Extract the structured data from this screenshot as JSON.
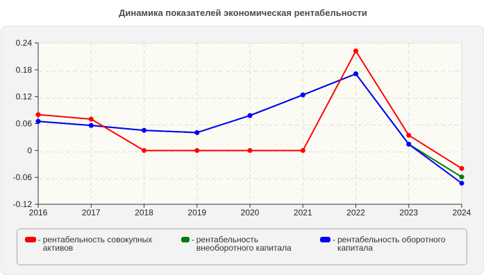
{
  "title": "Динамика показателей экономическая рентабельности",
  "colors": {
    "panel_bg": "#f3f3f3",
    "plot_bg": "#fdfdf5",
    "grid": "#dcdcdc",
    "axis": "#333333"
  },
  "legend": {
    "items": [
      {
        "label": "рентабельность совокупных активов",
        "color": "#ff0000"
      },
      {
        "label": "рентабельность внеоборотного капитала",
        "color": "#008000"
      },
      {
        "label": "рентабельность оборотного капитала",
        "color": "#0000ff"
      }
    ],
    "dash": "-"
  },
  "chart_data": {
    "type": "line",
    "title": "Динамика показателей экономическая рентабельности",
    "xlabel": "",
    "ylabel": "",
    "x": [
      "2016",
      "2017",
      "2018",
      "2019",
      "2020",
      "2021",
      "2022",
      "2023",
      "2024"
    ],
    "ylim": [
      -0.12,
      0.24
    ],
    "yticks": [
      "0.24",
      "0.18",
      "0.12",
      "0.06",
      "0",
      "-0.06",
      "-0.12"
    ],
    "ytick_values": [
      0.24,
      0.18,
      0.12,
      0.06,
      0,
      -0.06,
      -0.12
    ],
    "grid": true,
    "legend_position": "bottom",
    "series": [
      {
        "name": "рентабельность совокупных активов",
        "color": "#ff0000",
        "values": [
          0.08,
          0.07,
          0.0,
          0.0,
          0.0,
          0.0,
          0.222,
          0.034,
          -0.04
        ]
      },
      {
        "name": "рентабельность внеоборотного капитала",
        "color": "#008000",
        "values": [
          0.065,
          0.056,
          0.045,
          0.04,
          0.078,
          0.124,
          0.171,
          0.014,
          -0.059
        ]
      },
      {
        "name": "рентабельность оборотного капитала",
        "color": "#0000ff",
        "values": [
          0.065,
          0.056,
          0.045,
          0.04,
          0.078,
          0.124,
          0.171,
          0.014,
          -0.073
        ]
      }
    ]
  }
}
